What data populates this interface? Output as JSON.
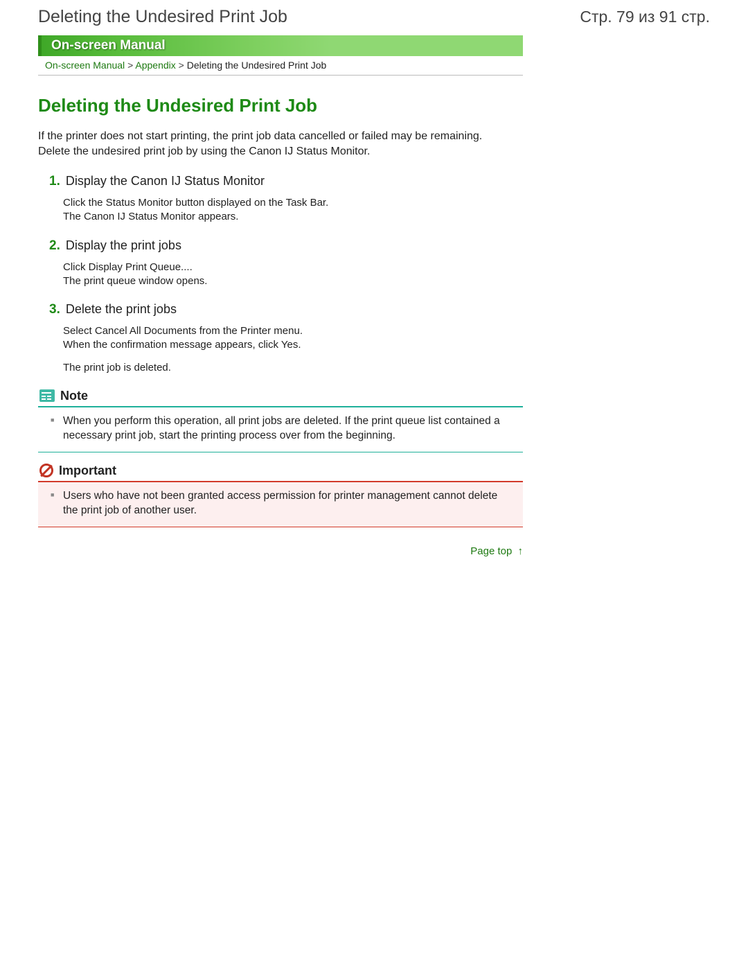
{
  "header": {
    "title": "Deleting the Undesired Print Job",
    "page_counter": "Стр. 79 из 91 стр."
  },
  "banner": {
    "label": "On-screen Manual"
  },
  "breadcrumb": {
    "link1": "On-screen Manual",
    "sep": ">",
    "link2": "Appendix",
    "current": "Deleting the Undesired Print Job"
  },
  "content": {
    "heading": "Deleting the Undesired Print Job",
    "intro_line1": "If the printer does not start printing, the print job data cancelled or failed may be remaining.",
    "intro_line2": "Delete the undesired print job by using the Canon IJ Status Monitor.",
    "steps": {
      "s1": {
        "num": "1.",
        "title": "Display the Canon IJ Status Monitor",
        "body_line1": "Click the Status Monitor button displayed on the Task Bar.",
        "body_line2": "The Canon IJ Status Monitor appears."
      },
      "s2": {
        "num": "2.",
        "title": "Display the print jobs",
        "body_line1": "Click Display Print Queue....",
        "body_line2": "The print queue window opens."
      },
      "s3": {
        "num": "3.",
        "title": "Delete the print jobs",
        "body_line1": "Select Cancel All Documents from the Printer menu.",
        "body_line2": "When the confirmation message appears, click Yes.",
        "body_line3": "The print job is deleted."
      }
    },
    "note": {
      "label": "Note",
      "text": "When you perform this operation, all print jobs are deleted. If the print queue list contained a necessary print job, start the printing process over from the beginning."
    },
    "important": {
      "label": "Important",
      "text": "Users who have not been granted access permission for printer management cannot delete the print job of another user."
    },
    "page_top": "Page top",
    "page_top_arrow": "↑"
  },
  "colors": {
    "green_text": "#1e8a16",
    "green_link": "#1e7a12",
    "banner_border": "#2f8f1a",
    "note_accent": "#1eb09a",
    "important_accent": "#d23a2a",
    "important_bg": "#fdefef"
  }
}
